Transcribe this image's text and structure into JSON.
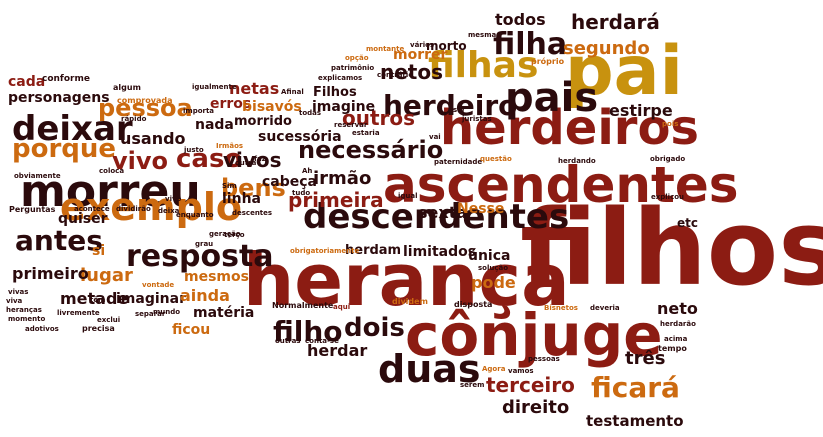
{
  "palette": {
    "dark": "#2b0a0c",
    "red": "#8c1c13",
    "orange": "#cc6a10",
    "gold": "#c8920f",
    "lite": "#e0a020",
    "brown": "#6e2a12"
  },
  "words": [
    {
      "text": "filhos",
      "color": "red"
    },
    {
      "text": "herança",
      "color": "red"
    },
    {
      "text": "cônjuge",
      "color": "red"
    },
    {
      "text": "ascendentes",
      "color": "red"
    },
    {
      "text": "herdeiros",
      "color": "red"
    },
    {
      "text": "pai",
      "color": "gold"
    },
    {
      "text": "morreu",
      "color": "dark"
    },
    {
      "text": "descendentes",
      "color": "dark"
    },
    {
      "text": "exemplo",
      "color": "orange"
    },
    {
      "text": "pais",
      "color": "dark"
    },
    {
      "text": "filhas",
      "color": "gold"
    },
    {
      "text": "herdeiro",
      "color": "dark"
    },
    {
      "text": "duas",
      "color": "dark"
    },
    {
      "text": "resposta",
      "color": "dark"
    },
    {
      "text": "deixar",
      "color": "dark"
    },
    {
      "text": "filha",
      "color": "dark"
    },
    {
      "text": "necessário",
      "color": "dark"
    },
    {
      "text": "porque",
      "color": "orange"
    },
    {
      "text": "caso",
      "color": "red"
    },
    {
      "text": "pessoa",
      "color": "orange"
    },
    {
      "text": "vivo",
      "color": "red"
    },
    {
      "text": "antes",
      "color": "dark"
    },
    {
      "text": "bens",
      "color": "orange"
    },
    {
      "text": "filho",
      "color": "dark"
    },
    {
      "text": "dois",
      "color": "dark"
    },
    {
      "text": "ficará",
      "color": "orange"
    },
    {
      "text": "herdará",
      "color": "dark"
    },
    {
      "text": "segundo",
      "color": "orange"
    },
    {
      "text": "netos",
      "color": "dark"
    },
    {
      "text": "outros",
      "color": "red"
    },
    {
      "text": "primeira",
      "color": "red"
    },
    {
      "text": "vivos",
      "color": "dark"
    },
    {
      "text": "irmão",
      "color": "dark"
    },
    {
      "text": "terceiro",
      "color": "red"
    },
    {
      "text": "direito",
      "color": "dark"
    },
    {
      "text": "três",
      "color": "dark"
    },
    {
      "text": "estirpe",
      "color": "dark"
    },
    {
      "text": "todos",
      "color": "dark"
    },
    {
      "text": "morrer",
      "color": "orange"
    },
    {
      "text": "morto",
      "color": "dark"
    },
    {
      "text": "netas",
      "color": "red"
    },
    {
      "text": "erros",
      "color": "red"
    },
    {
      "text": "bisavós",
      "color": "orange"
    },
    {
      "text": "imagine",
      "color": "dark"
    },
    {
      "text": "Filhos",
      "color": "dark"
    },
    {
      "text": "sucessória",
      "color": "dark"
    },
    {
      "text": "cabeça",
      "color": "dark"
    },
    {
      "text": "linha",
      "color": "dark"
    },
    {
      "text": "nada",
      "color": "dark"
    },
    {
      "text": "morrido",
      "color": "dark"
    },
    {
      "text": "usando",
      "color": "dark"
    },
    {
      "text": "metade",
      "color": "dark"
    },
    {
      "text": "quiser",
      "color": "dark"
    },
    {
      "text": "lugar",
      "color": "orange"
    },
    {
      "text": "primeiro",
      "color": "dark"
    },
    {
      "text": "mesmos",
      "color": "orange"
    },
    {
      "text": "imaginar",
      "color": "dark"
    },
    {
      "text": "ainda",
      "color": "orange"
    },
    {
      "text": "matéria",
      "color": "dark"
    },
    {
      "text": "ficou",
      "color": "orange"
    },
    {
      "text": "personagens",
      "color": "dark"
    },
    {
      "text": "cada",
      "color": "red"
    },
    {
      "text": "sexta",
      "color": "dark"
    },
    {
      "text": "limitados",
      "color": "dark"
    },
    {
      "text": "herdam",
      "color": "dark"
    },
    {
      "text": "única",
      "color": "dark"
    },
    {
      "text": "pode",
      "color": "orange"
    },
    {
      "text": "neto",
      "color": "dark"
    },
    {
      "text": "herdar",
      "color": "dark"
    },
    {
      "text": "testamento",
      "color": "dark"
    },
    {
      "text": "Nesse",
      "color": "orange"
    },
    {
      "text": "etc",
      "color": "dark"
    },
    {
      "text": "si",
      "color": "orange"
    },
    {
      "text": "conforme",
      "color": "dark"
    },
    {
      "text": "algum",
      "color": "dark"
    },
    {
      "text": "igualmente",
      "color": "dark"
    },
    {
      "text": "comprovada",
      "color": "orange"
    },
    {
      "text": "precisa",
      "color": "dark"
    },
    {
      "text": "Perguntas",
      "color": "dark"
    },
    {
      "text": "acontece",
      "color": "dark"
    },
    {
      "text": "dividirão",
      "color": "dark"
    },
    {
      "text": "deixa",
      "color": "dark"
    },
    {
      "text": "mundo",
      "color": "dark"
    },
    {
      "text": "Normalmente",
      "color": "dark"
    },
    {
      "text": "aqui",
      "color": "red"
    },
    {
      "text": "dividem",
      "color": "orange"
    },
    {
      "text": "disposta",
      "color": "dark"
    },
    {
      "text": "vivas",
      "color": "dark"
    },
    {
      "text": "viva",
      "color": "dark"
    },
    {
      "text": "heranças",
      "color": "dark"
    },
    {
      "text": "livremente",
      "color": "dark"
    },
    {
      "text": "adotivos",
      "color": "dark"
    },
    {
      "text": "momento",
      "color": "dark"
    },
    {
      "text": "têm",
      "color": "dark"
    },
    {
      "text": "exclui",
      "color": "dark"
    },
    {
      "text": "separar",
      "color": "dark"
    },
    {
      "text": "outras",
      "color": "dark"
    },
    {
      "text": "conta-se",
      "color": "dark"
    },
    {
      "text": "obviamente",
      "color": "dark"
    },
    {
      "text": "coloca",
      "color": "dark"
    },
    {
      "text": "rápido",
      "color": "dark"
    },
    {
      "text": "vontade",
      "color": "orange"
    },
    {
      "text": "justo",
      "color": "dark"
    },
    {
      "text": "Irmãos",
      "color": "orange"
    },
    {
      "text": "importa",
      "color": "dark"
    },
    {
      "text": "enquanto",
      "color": "dark"
    },
    {
      "text": "faz",
      "color": "dark"
    },
    {
      "text": "outra",
      "color": "dark"
    },
    {
      "text": "Sim",
      "color": "dark"
    },
    {
      "text": "todas",
      "color": "dark"
    },
    {
      "text": "Afinal",
      "color": "dark"
    },
    {
      "text": "reservar",
      "color": "dark"
    },
    {
      "text": "estaria",
      "color": "dark"
    },
    {
      "text": "Ah",
      "color": "dark"
    },
    {
      "text": "tudo",
      "color": "dark"
    },
    {
      "text": "descentes",
      "color": "dark"
    },
    {
      "text": "geração",
      "color": "dark"
    },
    {
      "text": "terço",
      "color": "dark"
    },
    {
      "text": "grau",
      "color": "dark"
    },
    {
      "text": "igual",
      "color": "dark"
    },
    {
      "text": "obrigatoriamente",
      "color": "orange"
    },
    {
      "text": "solução",
      "color": "dark"
    },
    {
      "text": "mesma",
      "color": "dark"
    },
    {
      "text": "explicamos",
      "color": "dark"
    },
    {
      "text": "patrimônio",
      "color": "dark"
    },
    {
      "text": "contrário",
      "color": "dark"
    },
    {
      "text": "opção",
      "color": "orange"
    },
    {
      "text": "montante",
      "color": "orange"
    },
    {
      "text": "vários",
      "color": "dark"
    },
    {
      "text": "próprio",
      "color": "orange"
    },
    {
      "text": "ser",
      "color": "dark"
    },
    {
      "text": "juristas",
      "color": "dark"
    },
    {
      "text": "vai",
      "color": "dark"
    },
    {
      "text": "paternidade",
      "color": "dark"
    },
    {
      "text": "questão",
      "color": "orange"
    },
    {
      "text": "herdando",
      "color": "dark"
    },
    {
      "text": "obrigado",
      "color": "dark"
    },
    {
      "text": "pois",
      "color": "orange"
    },
    {
      "text": "explicou",
      "color": "dark"
    },
    {
      "text": "Bisnetos",
      "color": "orange"
    },
    {
      "text": "deveria",
      "color": "dark"
    },
    {
      "text": "herdarão",
      "color": "dark"
    },
    {
      "text": "acima",
      "color": "dark"
    },
    {
      "text": "tempo",
      "color": "dark"
    },
    {
      "text": "Agora",
      "color": "orange"
    },
    {
      "text": "vamos",
      "color": "dark"
    },
    {
      "text": "pessoas",
      "color": "dark"
    },
    {
      "text": "serem",
      "color": "dark"
    },
    {
      "text": "vivo",
      "color": "dark"
    }
  ]
}
